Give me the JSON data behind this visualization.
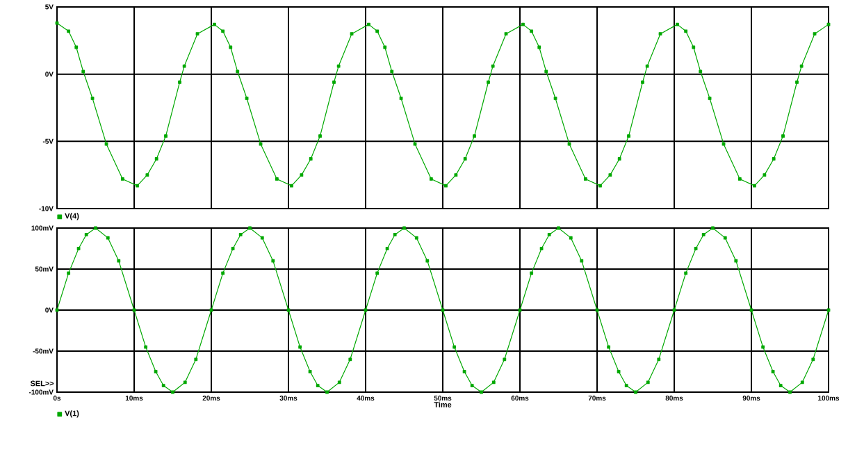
{
  "chart_data": [
    {
      "type": "line",
      "xlim": [
        0,
        100
      ],
      "ylim": [
        -10,
        5
      ],
      "grid": true,
      "legend": "bottom left",
      "marker": "square",
      "tick_labels": "y",
      "xticks": [
        {
          "value": 0,
          "label": null
        },
        {
          "value": 10,
          "label": null
        },
        {
          "value": 20,
          "label": null
        },
        {
          "value": 30,
          "label": null
        },
        {
          "value": 40,
          "label": null
        },
        {
          "value": 50,
          "label": null
        },
        {
          "value": 60,
          "label": null
        },
        {
          "value": 70,
          "label": null
        },
        {
          "value": 80,
          "label": null
        },
        {
          "value": 90,
          "label": null
        },
        {
          "value": 100,
          "label": null
        }
      ],
      "yticks": [
        {
          "value": -10,
          "label": "-10V"
        },
        {
          "value": -5,
          "label": "-5V"
        },
        {
          "value": 0,
          "label": "0V"
        },
        {
          "value": 5,
          "label": "5V"
        }
      ],
      "x": [
        0,
        1.5,
        2.5,
        3.4,
        4.6,
        6.4,
        8.5,
        10.4,
        11.7,
        12.9,
        14.1,
        15.9,
        16.5,
        18.2,
        20.4,
        21.5,
        22.5,
        23.4,
        24.6,
        26.4,
        28.5,
        30.4,
        31.7,
        32.9,
        34.1,
        35.9,
        36.5,
        38.2,
        40.4,
        41.5,
        42.5,
        43.4,
        44.6,
        46.4,
        48.5,
        50.4,
        51.7,
        52.9,
        54.1,
        55.9,
        56.5,
        58.2,
        60.4,
        61.5,
        62.5,
        63.4,
        64.6,
        66.4,
        68.5,
        70.4,
        71.7,
        72.9,
        74.1,
        75.9,
        76.5,
        78.2,
        80.4,
        81.5,
        82.5,
        83.4,
        84.6,
        86.4,
        88.5,
        90.4,
        91.7,
        92.9,
        94.1,
        95.9,
        96.5,
        98.2,
        100
      ],
      "series": [
        {
          "name": "V(4)",
          "color": "#00a800",
          "values": [
            3.8,
            3.2,
            2.0,
            0.2,
            -1.8,
            -5.2,
            -7.8,
            -8.3,
            -7.5,
            -6.3,
            -4.6,
            -0.6,
            0.6,
            3.0,
            3.7,
            3.2,
            2.0,
            0.2,
            -1.8,
            -5.2,
            -7.8,
            -8.3,
            -7.5,
            -6.3,
            -4.6,
            -0.6,
            0.6,
            3.0,
            3.7,
            3.2,
            2.0,
            0.2,
            -1.8,
            -5.2,
            -7.8,
            -8.3,
            -7.5,
            -6.3,
            -4.6,
            -0.6,
            0.6,
            3.0,
            3.7,
            3.2,
            2.0,
            0.2,
            -1.8,
            -5.2,
            -7.8,
            -8.3,
            -7.5,
            -6.3,
            -4.6,
            -0.6,
            0.6,
            3.0,
            3.7,
            3.2,
            2.0,
            0.2,
            -1.8,
            -5.2,
            -7.8,
            -8.3,
            -7.5,
            -6.3,
            -4.6,
            -0.6,
            0.6,
            3.0,
            3.7
          ]
        }
      ]
    },
    {
      "type": "line",
      "xlim": [
        0,
        100
      ],
      "ylim": [
        -100,
        100
      ],
      "grid": true,
      "legend": "bottom left",
      "marker": "square",
      "xlabel": "Time",
      "annotations": [
        "SEL>>"
      ],
      "xticks": [
        {
          "value": 0,
          "label": "0s"
        },
        {
          "value": 10,
          "label": "10ms"
        },
        {
          "value": 20,
          "label": "20ms"
        },
        {
          "value": 30,
          "label": "30ms"
        },
        {
          "value": 40,
          "label": "40ms"
        },
        {
          "value": 50,
          "label": "50ms"
        },
        {
          "value": 60,
          "label": "60ms"
        },
        {
          "value": 70,
          "label": "70ms"
        },
        {
          "value": 80,
          "label": "80ms"
        },
        {
          "value": 90,
          "label": "90ms"
        },
        {
          "value": 100,
          "label": "100ms"
        }
      ],
      "yticks": [
        {
          "value": -100,
          "label": "-100mV"
        },
        {
          "value": -50,
          "label": "-50mV"
        },
        {
          "value": 0,
          "label": "0V"
        },
        {
          "value": 50,
          "label": "50mV"
        },
        {
          "value": 100,
          "label": "100mV"
        }
      ],
      "x": [
        0,
        1.5,
        2.8,
        3.8,
        5,
        6.6,
        8,
        10,
        11.5,
        12.8,
        13.8,
        15,
        16.6,
        18,
        20,
        21.5,
        22.8,
        23.8,
        25,
        26.6,
        28,
        30,
        31.5,
        32.8,
        33.8,
        35,
        36.6,
        38,
        40,
        41.5,
        42.8,
        43.8,
        45,
        46.6,
        48,
        50,
        51.5,
        52.8,
        53.8,
        55,
        56.6,
        58,
        60,
        61.5,
        62.8,
        63.8,
        65,
        66.6,
        68,
        70,
        71.5,
        72.8,
        73.8,
        75,
        76.6,
        78,
        80,
        81.5,
        82.8,
        83.8,
        85,
        86.6,
        88,
        90,
        91.5,
        92.8,
        93.8,
        95,
        96.6,
        98,
        100
      ],
      "series": [
        {
          "name": "V(1)",
          "color": "#00a800",
          "values": [
            0,
            45,
            75,
            92,
            100,
            88,
            60,
            0,
            -45,
            -75,
            -92,
            -100,
            -88,
            -60,
            0,
            45,
            75,
            92,
            100,
            88,
            60,
            0,
            -45,
            -75,
            -92,
            -100,
            -88,
            -60,
            0,
            45,
            75,
            92,
            100,
            88,
            60,
            0,
            -45,
            -75,
            -92,
            -100,
            -88,
            -60,
            0,
            45,
            75,
            92,
            100,
            88,
            60,
            0,
            -45,
            -75,
            -92,
            -100,
            -88,
            -60,
            0,
            45,
            75,
            92,
            100,
            88,
            60,
            0,
            -45,
            -75,
            -92,
            -100,
            -88,
            -60,
            0
          ]
        }
      ]
    }
  ]
}
